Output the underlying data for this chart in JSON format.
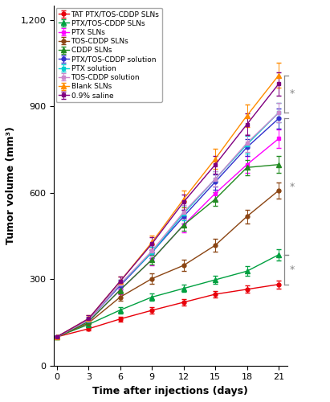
{
  "days": [
    0,
    3,
    6,
    9,
    12,
    15,
    18,
    21
  ],
  "series": [
    {
      "label": "TAT PTX/TOS-CDDP SLNs",
      "color": "#e8000a",
      "marker": "o",
      "markersize": 3.5,
      "values": [
        100,
        128,
        162,
        192,
        220,
        248,
        265,
        282
      ],
      "errors": [
        4,
        7,
        9,
        10,
        11,
        12,
        13,
        14
      ]
    },
    {
      "label": "PTX/TOS-CDDP SLNs",
      "color": "#00a040",
      "marker": "^",
      "markersize": 4.5,
      "values": [
        100,
        143,
        193,
        238,
        268,
        298,
        328,
        385
      ],
      "errors": [
        4,
        9,
        11,
        13,
        13,
        15,
        17,
        19
      ]
    },
    {
      "label": "PTX SLNs",
      "color": "#ff00ff",
      "marker": "s",
      "markersize": 3.5,
      "values": [
        100,
        153,
        263,
        368,
        488,
        598,
        698,
        788
      ],
      "errors": [
        4,
        9,
        14,
        19,
        24,
        24,
        29,
        33
      ]
    },
    {
      "label": "TOS-CDDP SLNs",
      "color": "#8b4513",
      "marker": "o",
      "markersize": 3.5,
      "values": [
        100,
        148,
        238,
        302,
        348,
        418,
        518,
        608
      ],
      "errors": [
        4,
        9,
        13,
        17,
        19,
        21,
        24,
        27
      ]
    },
    {
      "label": "CDDP SLNs",
      "color": "#228b22",
      "marker": "^",
      "markersize": 4.5,
      "values": [
        100,
        153,
        263,
        368,
        488,
        578,
        688,
        698
      ],
      "errors": [
        4,
        9,
        13,
        17,
        21,
        24,
        27,
        29
      ]
    },
    {
      "label": "PTX/TOS-CDDP solution",
      "color": "#3232cd",
      "marker": "o",
      "markersize": 3.5,
      "values": [
        100,
        158,
        278,
        393,
        518,
        638,
        758,
        858
      ],
      "errors": [
        4,
        9,
        14,
        19,
        24,
        27,
        29,
        34
      ]
    },
    {
      "label": "PTX solution",
      "color": "#00ced1",
      "marker": "s",
      "markersize": 3.5,
      "values": [
        100,
        158,
        283,
        393,
        528,
        648,
        768,
        878
      ],
      "errors": [
        4,
        9,
        14,
        19,
        24,
        27,
        31,
        34
      ]
    },
    {
      "label": "TOS-CDDP solution",
      "color": "#cc88cc",
      "marker": "s",
      "markersize": 3.5,
      "values": [
        100,
        158,
        283,
        398,
        533,
        648,
        773,
        878
      ],
      "errors": [
        4,
        9,
        14,
        19,
        24,
        27,
        31,
        34
      ]
    },
    {
      "label": "Blank SLNs",
      "color": "#ff8c00",
      "marker": "^",
      "markersize": 4.5,
      "values": [
        100,
        163,
        293,
        428,
        578,
        718,
        868,
        1008
      ],
      "errors": [
        4,
        11,
        17,
        24,
        29,
        34,
        39,
        44
      ]
    },
    {
      "label": "0.9% saline",
      "color": "#800080",
      "marker": "s",
      "markersize": 3.5,
      "values": [
        100,
        163,
        293,
        423,
        568,
        698,
        838,
        978
      ],
      "errors": [
        4,
        11,
        17,
        23,
        27,
        31,
        37,
        41
      ]
    }
  ],
  "xlabel": "Time after injections (days)",
  "ylabel": "Tumor volume (mm³)",
  "xlim": [
    -0.3,
    21.8
  ],
  "ylim": [
    0,
    1250
  ],
  "yticks": [
    0,
    300,
    600,
    900,
    1200
  ],
  "xticks": [
    0,
    3,
    6,
    9,
    12,
    15,
    18,
    21
  ],
  "bracket_x": 21.55,
  "bracket_horiz": 0.35,
  "brackets": [
    {
      "y_low": 878,
      "y_high": 1008
    },
    {
      "y_low": 385,
      "y_high": 858
    },
    {
      "y_low": 282,
      "y_high": 385
    }
  ],
  "figsize": [
    4.11,
    5.0
  ],
  "dpi": 100
}
